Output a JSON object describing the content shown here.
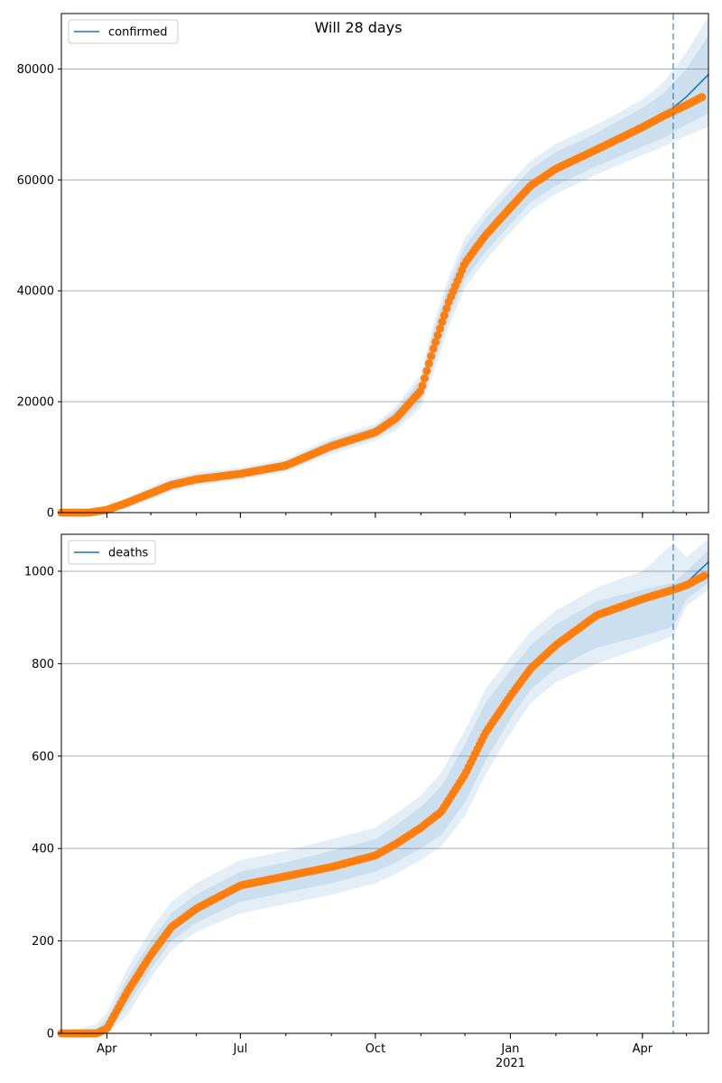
{
  "title": "Will 28 days",
  "colors": {
    "model_line": "#1f77b4",
    "observed": "#ff7f0e",
    "band": "#1f77b4",
    "grid": "#b0b0b0",
    "forecast_marker": "#1f77b4"
  },
  "x_axis": {
    "start": "2020-03-01",
    "end": "2021-05-16",
    "major_ticks": [
      {
        "date": "2020-04-01",
        "label": "Apr",
        "sublabel": ""
      },
      {
        "date": "2020-07-01",
        "label": "Jul",
        "sublabel": ""
      },
      {
        "date": "2020-10-01",
        "label": "Oct",
        "sublabel": ""
      },
      {
        "date": "2021-01-01",
        "label": "Jan",
        "sublabel": "2021"
      },
      {
        "date": "2021-04-01",
        "label": "Apr",
        "sublabel": ""
      }
    ],
    "forecast_start": "2021-04-22"
  },
  "chart_data": [
    {
      "type": "line",
      "legend": "confirmed",
      "legend_position": "top-left",
      "grid": "horizontal",
      "ylim": [
        0,
        90000
      ],
      "yticks": [
        0,
        20000,
        40000,
        60000,
        80000
      ],
      "ytick_labels": [
        "0",
        "20000",
        "40000",
        "60000",
        "80000"
      ],
      "model": {
        "x": [
          "2020-03-01",
          "2020-03-20",
          "2020-04-01",
          "2020-04-15",
          "2020-05-01",
          "2020-05-15",
          "2020-06-01",
          "2020-07-01",
          "2020-08-01",
          "2020-09-01",
          "2020-10-01",
          "2020-10-15",
          "2020-11-01",
          "2020-11-10",
          "2020-11-20",
          "2020-12-01",
          "2020-12-15",
          "2021-01-01",
          "2021-01-15",
          "2021-02-01",
          "2021-03-01",
          "2021-04-01",
          "2021-04-15",
          "2021-05-01",
          "2021-05-16"
        ],
        "y": [
          0,
          0,
          500,
          1800,
          3500,
          5000,
          6000,
          7000,
          8500,
          12000,
          14500,
          17000,
          22000,
          30000,
          38000,
          45000,
          50000,
          55000,
          59000,
          62000,
          65500,
          69500,
          71500,
          75000,
          79000
        ]
      },
      "observed": {
        "x": [
          "2020-03-01",
          "2020-03-20",
          "2020-04-01",
          "2020-04-15",
          "2020-05-01",
          "2020-05-15",
          "2020-06-01",
          "2020-07-01",
          "2020-08-01",
          "2020-09-01",
          "2020-10-01",
          "2020-10-15",
          "2020-11-01",
          "2020-11-10",
          "2020-11-20",
          "2020-12-01",
          "2020-12-15",
          "2021-01-01",
          "2021-01-15",
          "2021-02-01",
          "2021-03-01",
          "2021-04-01",
          "2021-04-15",
          "2021-05-01",
          "2021-05-12"
        ],
        "y": [
          0,
          0,
          500,
          1800,
          3500,
          5000,
          6000,
          7000,
          8500,
          12000,
          14500,
          17000,
          22000,
          30000,
          38000,
          45000,
          50000,
          55000,
          59000,
          62000,
          65500,
          69500,
          71500,
          73500,
          75000
        ]
      },
      "bands": [
        {
          "lower": [
            0,
            0,
            200,
            1200,
            2700,
            4200,
            5200,
            6300,
            7700,
            11000,
            13500,
            15500,
            20000,
            27000,
            35000,
            42000,
            47000,
            52000,
            56000,
            59000,
            62500,
            66000,
            67500,
            70000,
            72000
          ],
          "upper": [
            0,
            100,
            800,
            2400,
            4300,
            5800,
            6800,
            7700,
            9300,
            13000,
            15500,
            18500,
            24000,
            33000,
            41000,
            48000,
            53000,
            58000,
            62000,
            65000,
            68500,
            73000,
            75500,
            80000,
            86000
          ]
        },
        {
          "lower": [
            0,
            0,
            100,
            900,
            2300,
            3800,
            4800,
            5900,
            7300,
            10500,
            13000,
            14800,
            19000,
            25500,
            33500,
            40500,
            45500,
            50500,
            54500,
            57500,
            61000,
            64500,
            66000,
            68000,
            69500
          ],
          "upper": [
            0,
            200,
            900,
            2700,
            4700,
            6200,
            7200,
            8100,
            9700,
            13500,
            16000,
            19200,
            25000,
            34500,
            42500,
            49500,
            54500,
            59500,
            63500,
            66500,
            70000,
            74500,
            77500,
            83000,
            89500
          ]
        }
      ]
    },
    {
      "type": "line",
      "legend": "deaths",
      "legend_position": "top-left",
      "grid": "horizontal",
      "ylim": [
        0,
        1080
      ],
      "yticks": [
        0,
        200,
        400,
        600,
        800,
        1000
      ],
      "ytick_labels": [
        "0",
        "200",
        "400",
        "600",
        "800",
        "1000"
      ],
      "model": {
        "x": [
          "2020-03-01",
          "2020-03-25",
          "2020-04-01",
          "2020-04-15",
          "2020-05-01",
          "2020-05-15",
          "2020-06-01",
          "2020-07-01",
          "2020-08-01",
          "2020-09-01",
          "2020-10-01",
          "2020-10-15",
          "2020-11-01",
          "2020-11-15",
          "2020-12-01",
          "2020-12-15",
          "2021-01-01",
          "2021-01-15",
          "2021-02-01",
          "2021-03-01",
          "2021-04-01",
          "2021-04-22",
          "2021-05-01",
          "2021-05-16"
        ],
        "y": [
          0,
          0,
          10,
          90,
          170,
          230,
          270,
          320,
          340,
          360,
          385,
          410,
          445,
          480,
          560,
          650,
          730,
          790,
          840,
          905,
          940,
          960,
          975,
          1020
        ]
      },
      "observed": {
        "x": [
          "2020-03-01",
          "2020-03-25",
          "2020-04-01",
          "2020-04-15",
          "2020-05-01",
          "2020-05-15",
          "2020-06-01",
          "2020-07-01",
          "2020-08-01",
          "2020-09-01",
          "2020-10-01",
          "2020-10-15",
          "2020-11-01",
          "2020-11-15",
          "2020-12-01",
          "2020-12-15",
          "2021-01-01",
          "2021-01-15",
          "2021-02-01",
          "2021-03-01",
          "2021-04-01",
          "2021-04-22",
          "2021-05-01",
          "2021-05-13"
        ],
        "y": [
          0,
          0,
          10,
          90,
          170,
          230,
          270,
          320,
          340,
          360,
          385,
          410,
          445,
          480,
          560,
          650,
          730,
          790,
          840,
          905,
          940,
          960,
          970,
          990
        ]
      },
      "bands": [
        {
          "lower": [
            0,
            0,
            0,
            60,
            140,
            200,
            240,
            285,
            305,
            325,
            350,
            370,
            400,
            430,
            500,
            590,
            680,
            745,
            790,
            835,
            860,
            880,
            940,
            975
          ],
          "upper": [
            0,
            10,
            30,
            120,
            200,
            260,
            300,
            350,
            370,
            395,
            420,
            450,
            490,
            535,
            625,
            715,
            785,
            840,
            885,
            935,
            960,
            975,
            1000,
            1045
          ]
        },
        {
          "lower": [
            0,
            0,
            0,
            40,
            120,
            180,
            220,
            260,
            280,
            300,
            325,
            345,
            375,
            405,
            470,
            560,
            650,
            715,
            760,
            800,
            835,
            860,
            925,
            960
          ],
          "upper": [
            0,
            20,
            45,
            140,
            225,
            285,
            325,
            375,
            395,
            420,
            445,
            475,
            515,
            565,
            655,
            745,
            815,
            870,
            915,
            965,
            1000,
            1060,
            1030,
            1070
          ]
        }
      ]
    }
  ]
}
